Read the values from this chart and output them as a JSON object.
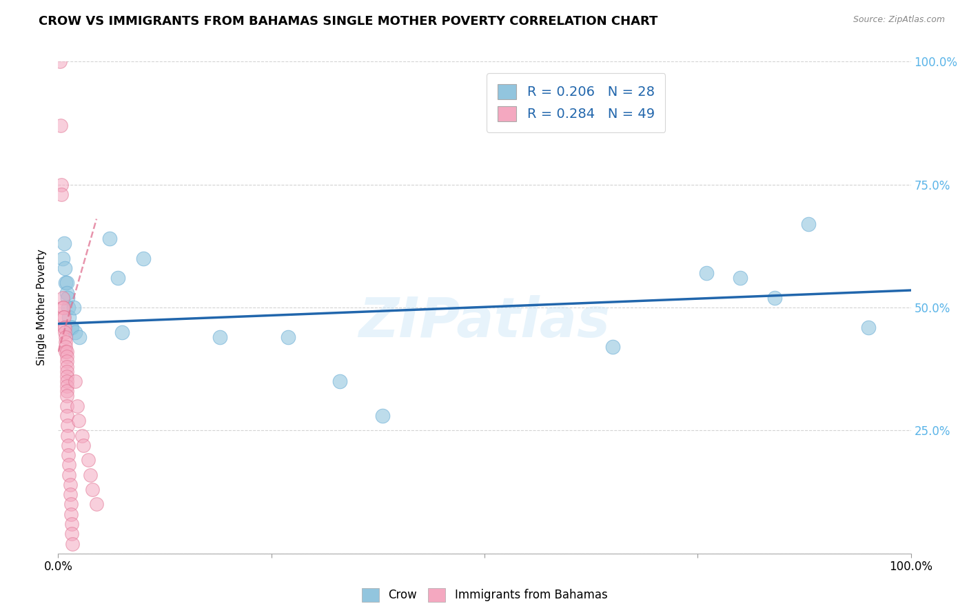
{
  "title": "CROW VS IMMIGRANTS FROM BAHAMAS SINGLE MOTHER POVERTY CORRELATION CHART",
  "source": "Source: ZipAtlas.com",
  "ylabel": "Single Mother Poverty",
  "xlim": [
    0,
    1
  ],
  "ylim": [
    0,
    1
  ],
  "bottom_legend": [
    "Crow",
    "Immigrants from Bahamas"
  ],
  "watermark": "ZIPatlas",
  "crow_scatter": [
    [
      0.005,
      0.6
    ],
    [
      0.007,
      0.63
    ],
    [
      0.008,
      0.58
    ],
    [
      0.009,
      0.55
    ],
    [
      0.01,
      0.55
    ],
    [
      0.01,
      0.53
    ],
    [
      0.011,
      0.52
    ],
    [
      0.012,
      0.5
    ],
    [
      0.013,
      0.48
    ],
    [
      0.015,
      0.46
    ],
    [
      0.016,
      0.46
    ],
    [
      0.018,
      0.5
    ],
    [
      0.02,
      0.45
    ],
    [
      0.025,
      0.44
    ],
    [
      0.06,
      0.64
    ],
    [
      0.07,
      0.56
    ],
    [
      0.075,
      0.45
    ],
    [
      0.1,
      0.6
    ],
    [
      0.19,
      0.44
    ],
    [
      0.27,
      0.44
    ],
    [
      0.33,
      0.35
    ],
    [
      0.38,
      0.28
    ],
    [
      0.65,
      0.42
    ],
    [
      0.76,
      0.57
    ],
    [
      0.8,
      0.56
    ],
    [
      0.84,
      0.52
    ],
    [
      0.88,
      0.67
    ],
    [
      0.95,
      0.46
    ]
  ],
  "bahamas_scatter": [
    [
      0.002,
      1.0
    ],
    [
      0.003,
      0.87
    ],
    [
      0.004,
      0.75
    ],
    [
      0.004,
      0.73
    ],
    [
      0.005,
      0.52
    ],
    [
      0.005,
      0.5
    ],
    [
      0.006,
      0.5
    ],
    [
      0.006,
      0.48
    ],
    [
      0.007,
      0.48
    ],
    [
      0.007,
      0.46
    ],
    [
      0.008,
      0.46
    ],
    [
      0.008,
      0.45
    ],
    [
      0.009,
      0.44
    ],
    [
      0.009,
      0.43
    ],
    [
      0.009,
      0.42
    ],
    [
      0.009,
      0.41
    ],
    [
      0.01,
      0.41
    ],
    [
      0.01,
      0.4
    ],
    [
      0.01,
      0.39
    ],
    [
      0.01,
      0.38
    ],
    [
      0.01,
      0.37
    ],
    [
      0.01,
      0.36
    ],
    [
      0.01,
      0.35
    ],
    [
      0.01,
      0.34
    ],
    [
      0.01,
      0.33
    ],
    [
      0.01,
      0.32
    ],
    [
      0.01,
      0.3
    ],
    [
      0.01,
      0.28
    ],
    [
      0.011,
      0.26
    ],
    [
      0.011,
      0.24
    ],
    [
      0.012,
      0.22
    ],
    [
      0.012,
      0.2
    ],
    [
      0.013,
      0.18
    ],
    [
      0.013,
      0.16
    ],
    [
      0.014,
      0.14
    ],
    [
      0.014,
      0.12
    ],
    [
      0.015,
      0.1
    ],
    [
      0.015,
      0.08
    ],
    [
      0.016,
      0.06
    ],
    [
      0.016,
      0.04
    ],
    [
      0.017,
      0.02
    ],
    [
      0.02,
      0.35
    ],
    [
      0.022,
      0.3
    ],
    [
      0.024,
      0.27
    ],
    [
      0.028,
      0.24
    ],
    [
      0.03,
      0.22
    ],
    [
      0.035,
      0.19
    ],
    [
      0.038,
      0.16
    ],
    [
      0.04,
      0.13
    ],
    [
      0.045,
      0.1
    ]
  ],
  "crow_line_x": [
    0.0,
    1.0
  ],
  "crow_line_y": [
    0.467,
    0.535
  ],
  "bahamas_line_x": [
    0.0,
    0.045
  ],
  "bahamas_line_y": [
    0.41,
    0.68
  ],
  "crow_color": "#92c5de",
  "crow_edge": "#6baed6",
  "bahamas_color": "#f4a8c0",
  "bahamas_edge": "#e07090",
  "crow_line_color": "#2166ac",
  "bahamas_line_color": "#e07090",
  "background": "#ffffff",
  "grid_color": "#c8c8c8",
  "right_tick_color": "#5ab4e8",
  "legend_label_color": "#2166ac"
}
